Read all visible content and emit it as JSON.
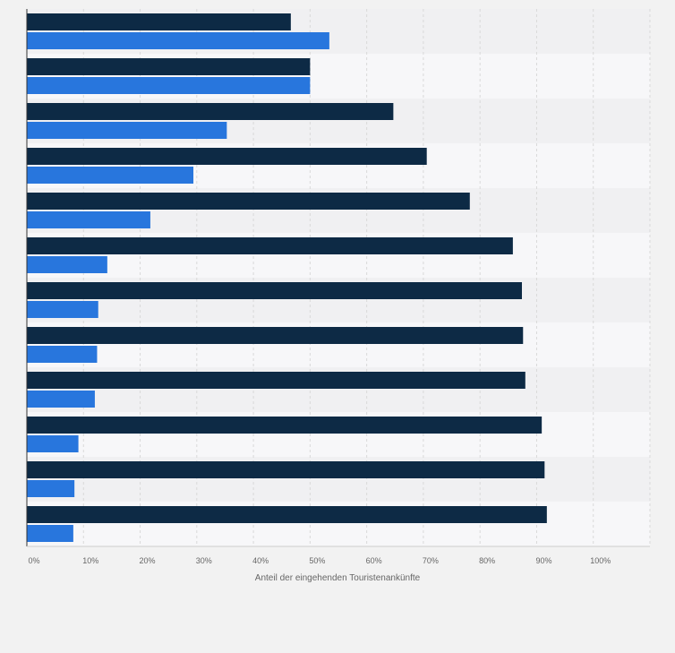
{
  "colors": {
    "page_background": "#f2f2f2",
    "band_light": "#f7f7f9",
    "band_dark": "#f0f0f2",
    "grid": "#d9d9d9",
    "axis": "#333333",
    "text": "#666666"
  },
  "chart_data": {
    "type": "bar",
    "orientation": "horizontal",
    "grouped": true,
    "xlabel": "Anteil der eingehenden Touristenankünfte",
    "ylabel": "",
    "xlim": [
      0,
      110
    ],
    "x_ticks": [
      0,
      10,
      20,
      30,
      40,
      50,
      60,
      70,
      80,
      90,
      100
    ],
    "x_tick_labels": [
      "0%",
      "10%",
      "20%",
      "30%",
      "40%",
      "50%",
      "60%",
      "70%",
      "80%",
      "90%",
      "100%"
    ],
    "grid": true,
    "categories": [
      "",
      "",
      "",
      "",
      "",
      "",
      "",
      "",
      "",
      "",
      "",
      ""
    ],
    "series": [
      {
        "color": "#0d2a45",
        "values": [
          46.6,
          50.0,
          64.7,
          70.6,
          78.2,
          85.8,
          87.4,
          87.6,
          88.0,
          90.9,
          91.4,
          91.8
        ]
      },
      {
        "color": "#2876dd",
        "values": [
          53.4,
          50.0,
          35.3,
          29.4,
          21.8,
          14.2,
          12.6,
          12.4,
          12.0,
          9.1,
          8.4,
          8.2
        ]
      }
    ]
  }
}
